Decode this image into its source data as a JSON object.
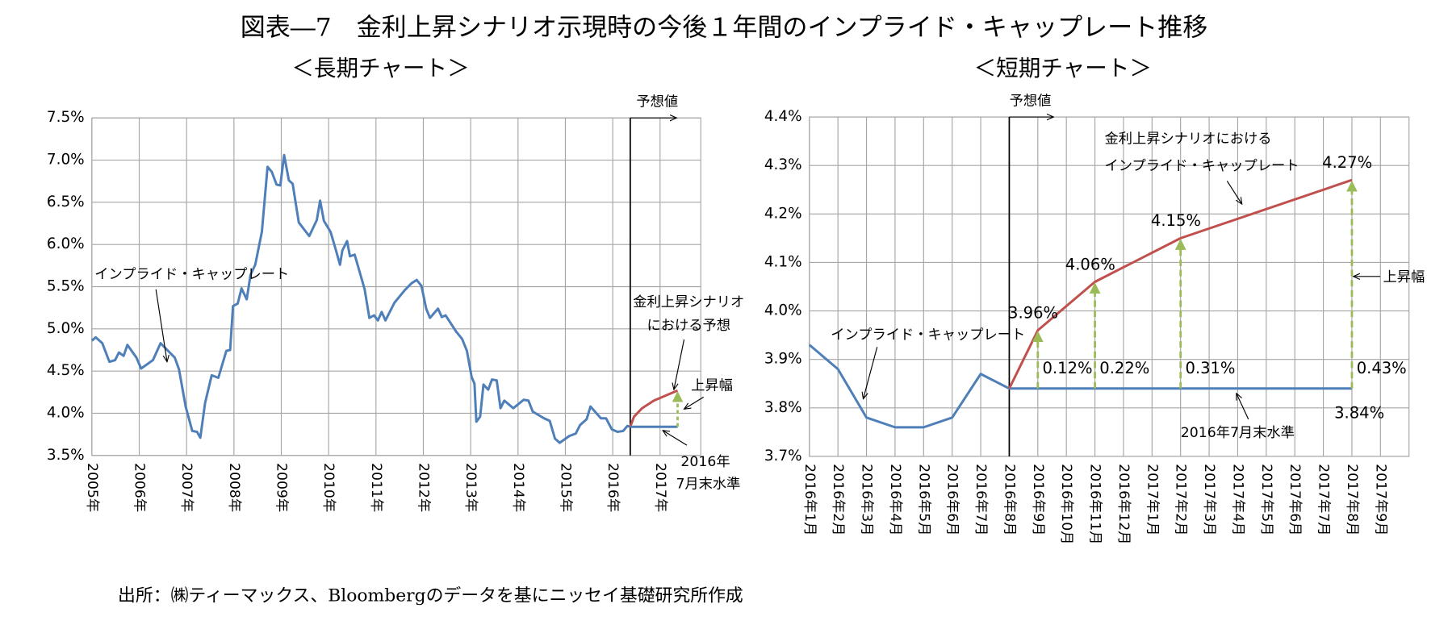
{
  "title": "図表―7　金利上昇シナリオ示現時の今後１年間のインプライド・キャップレート推移",
  "source": "出所：㈱ティーマックス、Bloombergのデータを基にニッセイ基礎研究所作成",
  "chart_data": [
    {
      "type": "line",
      "subtitle": "＜長期チャート＞",
      "xlim": [
        2005,
        2017.86
      ],
      "xticks": [
        {
          "value": 2005,
          "label": "2005年"
        },
        {
          "value": 2006,
          "label": "2006年"
        },
        {
          "value": 2007,
          "label": "2007年"
        },
        {
          "value": 2008,
          "label": "2008年"
        },
        {
          "value": 2009,
          "label": "2009年"
        },
        {
          "value": 2010,
          "label": "2010年"
        },
        {
          "value": 2011,
          "label": "2011年"
        },
        {
          "value": 2012,
          "label": "2012年"
        },
        {
          "value": 2013,
          "label": "2013年"
        },
        {
          "value": 2014,
          "label": "2014年"
        },
        {
          "value": 2015,
          "label": "2015年"
        },
        {
          "value": 2016,
          "label": "2016年"
        },
        {
          "value": 2017,
          "label": "2017年"
        }
      ],
      "ylim": [
        3.5,
        7.5
      ],
      "yticks": [
        {
          "value": 3.5,
          "label": "3.5%"
        },
        {
          "value": 4.0,
          "label": "4.0%"
        },
        {
          "value": 4.5,
          "label": "4.5%"
        },
        {
          "value": 5.0,
          "label": "5.0%"
        },
        {
          "value": 5.5,
          "label": "5.5%"
        },
        {
          "value": 6.0,
          "label": "6.0%"
        },
        {
          "value": 6.5,
          "label": "6.5%"
        },
        {
          "value": 7.0,
          "label": "7.0%"
        },
        {
          "value": 7.5,
          "label": "7.5%"
        }
      ],
      "grid": true,
      "forecast_x": 2016.37,
      "forecast_label": "予想値",
      "series": [
        {
          "color": "#4f7fb8",
          "x": [
            2005.0,
            2005.08,
            2005.22,
            2005.37,
            2005.49,
            2005.57,
            2005.67,
            2005.75,
            2005.94,
            2006.04,
            2006.29,
            2006.45,
            2006.75,
            2006.84,
            2006.98,
            2007.12,
            2007.22,
            2007.29,
            2007.39,
            2007.53,
            2007.67,
            2007.84,
            2007.92,
            2007.98,
            2008.08,
            2008.16,
            2008.27,
            2008.35,
            2008.45,
            2008.59,
            2008.71,
            2008.8,
            2008.9,
            2008.98,
            2009.06,
            2009.16,
            2009.24,
            2009.37,
            2009.59,
            2009.75,
            2009.82,
            2009.9,
            2010.04,
            2010.14,
            2010.24,
            2010.29,
            2010.39,
            2010.45,
            2010.55,
            2010.76,
            2010.86,
            2010.96,
            2011.04,
            2011.12,
            2011.2,
            2011.39,
            2011.61,
            2011.75,
            2011.86,
            2011.96,
            2012.06,
            2012.14,
            2012.31,
            2012.39,
            2012.47,
            2012.69,
            2012.82,
            2012.92,
            2013.02,
            2013.08,
            2013.12,
            2013.2,
            2013.27,
            2013.37,
            2013.45,
            2013.55,
            2013.63,
            2013.71,
            2013.9,
            2014.12,
            2014.22,
            2014.31,
            2014.55,
            2014.67,
            2014.78,
            2014.88,
            2015.08,
            2015.22,
            2015.31,
            2015.45,
            2015.53,
            2015.75,
            2015.86,
            2015.98,
            2016.1,
            2016.22,
            2016.31,
            2016.37
          ],
          "values": [
            4.86,
            4.9,
            4.83,
            4.61,
            4.63,
            4.72,
            4.68,
            4.81,
            4.66,
            4.53,
            4.63,
            4.83,
            4.66,
            4.52,
            4.08,
            3.79,
            3.78,
            3.71,
            4.12,
            4.45,
            4.42,
            4.74,
            4.75,
            5.27,
            5.3,
            5.48,
            5.35,
            5.64,
            5.76,
            6.15,
            6.92,
            6.86,
            6.71,
            6.7,
            7.06,
            6.76,
            6.72,
            6.26,
            6.1,
            6.29,
            6.52,
            6.28,
            6.15,
            5.96,
            5.76,
            5.93,
            6.04,
            5.86,
            5.88,
            5.47,
            5.13,
            5.16,
            5.1,
            5.2,
            5.1,
            5.31,
            5.46,
            5.54,
            5.58,
            5.51,
            5.24,
            5.13,
            5.24,
            5.14,
            5.16,
            4.97,
            4.88,
            4.74,
            4.43,
            4.35,
            3.9,
            3.96,
            4.34,
            4.28,
            4.4,
            4.39,
            4.06,
            4.15,
            4.06,
            4.16,
            4.15,
            4.02,
            3.94,
            3.91,
            3.7,
            3.65,
            3.73,
            3.76,
            3.86,
            3.93,
            4.08,
            3.94,
            3.94,
            3.81,
            3.78,
            3.79,
            3.85,
            3.84
          ]
        },
        {
          "color": "#c0504d",
          "x": [
            2016.37,
            2016.45,
            2016.62,
            2016.87,
            2017.37
          ],
          "values": [
            3.84,
            3.96,
            4.06,
            4.15,
            4.27
          ]
        },
        {
          "color": "#4f7fb8",
          "x": [
            2016.37,
            2017.37
          ],
          "values": [
            3.84,
            3.84
          ]
        }
      ],
      "rise_color": "#9bbb59",
      "annotations": [
        "インプライド・キャップレート",
        "金利上昇シナリオ",
        "における予想",
        "上昇幅",
        "2016年",
        "7月末水準"
      ]
    },
    {
      "type": "line",
      "subtitle": "＜短期チャート＞",
      "categories": [
        "2016年1月",
        "2016年2月",
        "2016年3月",
        "2016年4月",
        "2016年5月",
        "2016年6月",
        "2016年7月",
        "2016年8月",
        "2016年9月",
        "2016年10月",
        "2016年11月",
        "2016年12月",
        "2017年1月",
        "2017年2月",
        "2017年3月",
        "2017年4月",
        "2017年5月",
        "2017年6月",
        "2017年7月",
        "2017年8月",
        "2017年9月"
      ],
      "ylim": [
        3.7,
        4.4
      ],
      "yticks": [
        {
          "value": 3.7,
          "label": "3.7%"
        },
        {
          "value": 3.8,
          "label": "3.8%"
        },
        {
          "value": 3.9,
          "label": "3.9%"
        },
        {
          "value": 4.0,
          "label": "4.0%"
        },
        {
          "value": 4.1,
          "label": "4.1%"
        },
        {
          "value": 4.2,
          "label": "4.2%"
        },
        {
          "value": 4.3,
          "label": "4.3%"
        },
        {
          "value": 4.4,
          "label": "4.4%"
        }
      ],
      "grid": true,
      "forecast_category": "2016年8月",
      "forecast_label": "予想値",
      "series": [
        {
          "color": "#4f7fb8",
          "values": [
            3.93,
            3.88,
            3.78,
            3.76,
            3.76,
            3.78,
            3.87,
            3.84,
            3.84,
            3.84,
            3.84,
            3.84,
            3.84,
            3.84,
            3.84,
            3.84,
            3.84,
            3.84,
            3.84,
            3.84,
            null
          ],
          "value_labels": [
            null,
            null,
            null,
            null,
            null,
            null,
            null,
            null,
            null,
            null,
            null,
            null,
            null,
            null,
            null,
            null,
            null,
            null,
            null,
            "3.84%",
            null
          ]
        },
        {
          "color": "#c0504d",
          "x": [
            "2016年8月",
            "2016年9月",
            "2016年11月",
            "2017年2月",
            "2017年8月"
          ],
          "values": [
            3.84,
            3.96,
            4.06,
            4.15,
            4.27
          ],
          "value_labels": [
            null,
            "3.96%",
            "4.06%",
            "4.15%",
            "4.27%"
          ]
        }
      ],
      "rises": {
        "color": "#9bbb59",
        "x": [
          "2016年9月",
          "2016年11月",
          "2017年2月",
          "2017年8月"
        ],
        "values": [
          0.12,
          0.22,
          0.31,
          0.43
        ],
        "value_labels": [
          "0.12%",
          "0.22%",
          "0.31%",
          "0.43%"
        ]
      },
      "annotations": [
        "インプライド・キャップレート",
        "金利上昇シナリオにおける",
        "インプライド・キャップレート",
        "2016年7月末水準",
        "上昇幅"
      ]
    }
  ]
}
